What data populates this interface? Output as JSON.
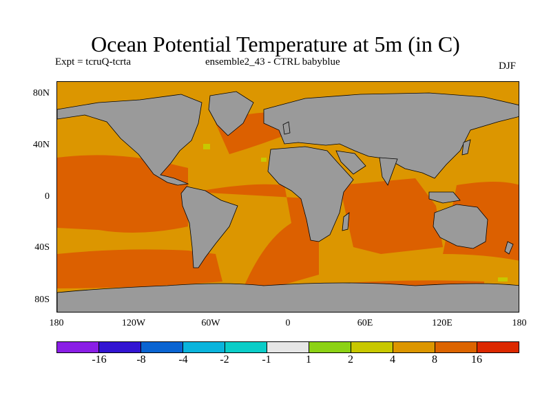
{
  "title": "Ocean Potential Temperature at 5m (in C)",
  "left_info": "Expt = tcruQ-tcrta",
  "center_info": "ensemble2_43 - CTRL babyblue",
  "season": "DJF",
  "map": {
    "lat_ticks": [
      "80N",
      "40N",
      "0",
      "40S",
      "80S"
    ],
    "lon_ticks": [
      "180",
      "120W",
      "60W",
      "0",
      "60E",
      "120E",
      "180"
    ],
    "colors": {
      "land": "#9a9a9a",
      "field_4_8": "#dc9600",
      "field_8_16": "#dc6000",
      "field_2_4": "#c8c800",
      "field_1_2": "#96d200"
    }
  },
  "colorbar": {
    "colors": [
      "#8a1ee6",
      "#3214d2",
      "#0a64d2",
      "#0ab4dc",
      "#0acdc8",
      "#e6e6e6",
      "#8cd214",
      "#c8c800",
      "#dc9600",
      "#dc6400",
      "#dc2800"
    ],
    "labels": [
      "-16",
      "-8",
      "-4",
      "-2",
      "-1",
      "1",
      "2",
      "4",
      "8",
      "16"
    ]
  }
}
